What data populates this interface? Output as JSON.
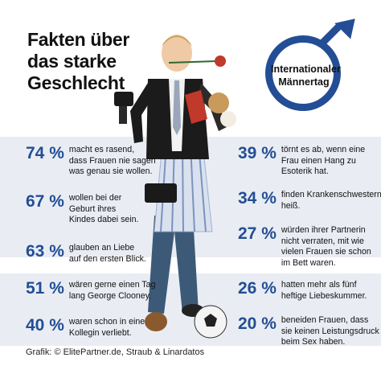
{
  "title": [
    "Fakten über",
    "das starke",
    "Geschlecht"
  ],
  "badge": [
    "Internationaler",
    "Männertag"
  ],
  "colors": {
    "accent": "#234e95",
    "band": "#e9edf3"
  },
  "left_stats": [
    {
      "pct": "74 %",
      "lines": [
        "macht es rasend,",
        "dass Frauen nie sagen",
        "was genau sie wollen."
      ]
    },
    {
      "pct": "67 %",
      "lines": [
        "wollen bei der",
        "Geburt ihres",
        "Kindes dabei sein."
      ]
    },
    {
      "pct": "63 %",
      "lines": [
        "glauben an Liebe",
        "auf den ersten Blick."
      ]
    },
    {
      "pct": "51 %",
      "lines": [
        "wären gerne einen Tag",
        "lang George Clooney."
      ]
    },
    {
      "pct": "40 %",
      "lines": [
        "waren schon in eine",
        "Kollegin verliebt."
      ]
    }
  ],
  "right_stats": [
    {
      "pct": "39 %",
      "lines": [
        "törnt es ab, wenn eine",
        "Frau einen Hang zu",
        "Esoterik hat."
      ]
    },
    {
      "pct": "34 %",
      "lines": [
        "finden Krankenschwestern",
        "heiß."
      ]
    },
    {
      "pct": "27 %",
      "lines": [
        "würden ihrer Partnerin",
        "nicht verraten, mit wie",
        "vielen Frauen sie schon",
        "im Bett waren."
      ]
    },
    {
      "pct": "26 %",
      "lines": [
        "hatten mehr als fünf",
        "heftige Liebeskummer."
      ]
    },
    {
      "pct": "20 %",
      "lines": [
        "beneiden Frauen, dass",
        "sie keinen Leistungsdruck",
        "beim Sex haben."
      ]
    }
  ],
  "credit": "Grafik: © ElitePartner.de, Straub & Linardatos",
  "icons": [
    "male-symbol-icon",
    "man-illustration"
  ]
}
